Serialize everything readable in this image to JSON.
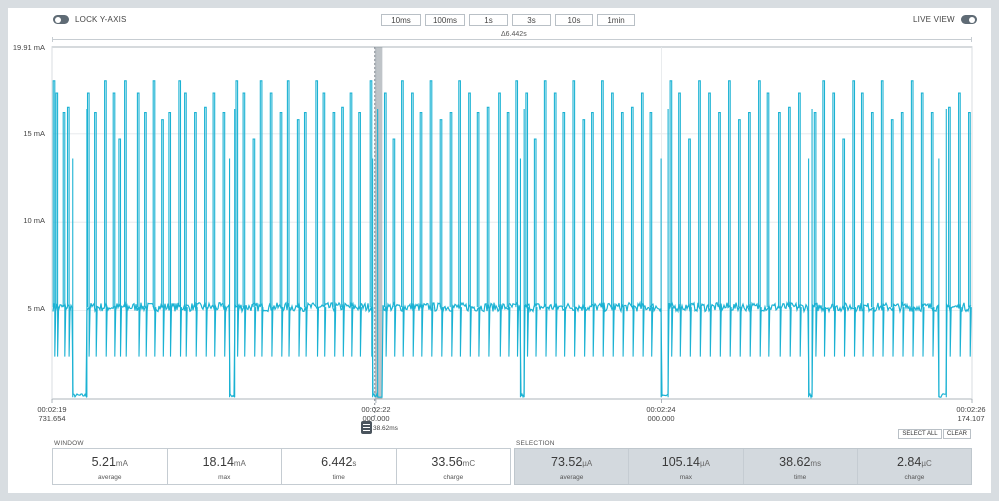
{
  "header": {
    "lock_y_axis_label": "LOCK Y-AXIS",
    "live_view_label": "LIVE VIEW",
    "zoom_buttons": [
      "10ms",
      "100ms",
      "1s",
      "3s",
      "10s",
      "1min"
    ],
    "window_delta": "Δ6.442s"
  },
  "cursor": {
    "duration": "38.62ms"
  },
  "chart_data": {
    "type": "line",
    "ylabel": "",
    "y_top_label": "19.91 mA",
    "y_ticks": [
      {
        "value": 15,
        "label": "15 mA"
      },
      {
        "value": 10,
        "label": "10 mA"
      },
      {
        "value": 5,
        "label": "5 mA"
      }
    ],
    "ylim": [
      0,
      19.91
    ],
    "x_ticks": [
      {
        "line1": "00:02:19",
        "line2": "731.654"
      },
      {
        "line1": "00:02:22",
        "line2": "000.000"
      },
      {
        "line1": "00:02:24",
        "line2": "000.000"
      },
      {
        "line1": "00:02:26",
        "line2": "174.107"
      }
    ],
    "xlim_seconds": [
      139.731654,
      146.174107
    ],
    "tick_seconds": [
      139.731654,
      142.0,
      144.0,
      146.174107
    ],
    "baseline_mA": 5.2,
    "spike_levels_mA": [
      18.0,
      17.3,
      16.2
    ],
    "dip_level_mA": 2.4,
    "selection_seconds": [
      141.999,
      142.038
    ],
    "sleep_intervals_seconds": [
      [
        139.877,
        139.976
      ],
      [
        140.975,
        141.011
      ],
      [
        141.977,
        142.012
      ],
      [
        143.012,
        143.038
      ],
      [
        143.997,
        144.046
      ],
      [
        145.03,
        145.054
      ],
      [
        145.942,
        145.994
      ]
    ],
    "spike_times_seconds": [
      139.74,
      139.76,
      139.81,
      139.84,
      139.98,
      140.03,
      140.1,
      140.16,
      140.2,
      140.24,
      140.33,
      140.38,
      140.44,
      140.5,
      140.55,
      140.62,
      140.66,
      140.73,
      140.8,
      140.86,
      140.93,
      141.02,
      141.07,
      141.14,
      141.19,
      141.26,
      141.33,
      141.38,
      141.45,
      141.5,
      141.58,
      141.63,
      141.7,
      141.76,
      141.82,
      141.88,
      141.96,
      142.06,
      142.12,
      142.18,
      142.25,
      142.31,
      142.38,
      142.45,
      142.52,
      142.58,
      142.65,
      142.71,
      142.78,
      142.86,
      142.92,
      142.98,
      143.05,
      143.11,
      143.18,
      143.25,
      143.31,
      143.38,
      143.45,
      143.51,
      143.58,
      143.65,
      143.72,
      143.79,
      143.86,
      143.92,
      144.06,
      144.12,
      144.19,
      144.26,
      144.33,
      144.4,
      144.47,
      144.54,
      144.61,
      144.68,
      144.74,
      144.82,
      144.89,
      144.96,
      145.07,
      145.13,
      145.2,
      145.27,
      145.34,
      145.4,
      145.47,
      145.54,
      145.61,
      145.68,
      145.75,
      145.82,
      145.89,
      146.01,
      146.08,
      146.15
    ]
  },
  "window_stats": {
    "title": "WINDOW",
    "items": [
      {
        "value": "5.21",
        "unit": "mA",
        "label": "average"
      },
      {
        "value": "18.14",
        "unit": "mA",
        "label": "max"
      },
      {
        "value": "6.442",
        "unit": "s",
        "label": "time"
      },
      {
        "value": "33.56",
        "unit": "mC",
        "label": "charge"
      }
    ]
  },
  "selection_stats": {
    "title": "SELECTION",
    "select_all_label": "SELECT ALL",
    "clear_label": "CLEAR",
    "items": [
      {
        "value": "73.52",
        "unit": "µA",
        "label": "average"
      },
      {
        "value": "105.14",
        "unit": "µA",
        "label": "max"
      },
      {
        "value": "38.62",
        "unit": "ms",
        "label": "time"
      },
      {
        "value": "2.84",
        "unit": "µC",
        "label": "charge"
      }
    ]
  },
  "colors": {
    "trace": "#1bb2d3",
    "grid": "#e4e8eb",
    "axis": "#9aa3ab",
    "selection": "#8a939b"
  }
}
